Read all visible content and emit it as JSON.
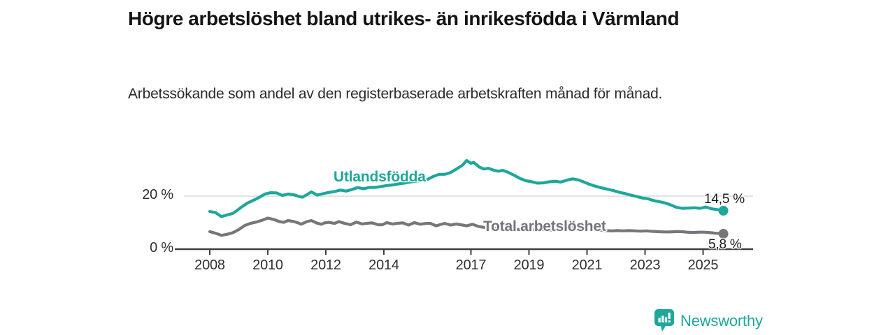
{
  "header": {
    "title": "Högre arbetslöshet bland utrikes- än inrikesfödda i Värmland",
    "subtitle": "Arbetssökande som andel av den registerbaserade arbetskraften månad för månad."
  },
  "chart_data": {
    "type": "line",
    "title": "Högre arbetslöshet bland utrikes- än inrikesfödda i Värmland",
    "subtitle": "Arbetssökande som andel av den registerbaserade arbetskraften månad för månad.",
    "unit": "%",
    "xlabel": "",
    "ylabel": "",
    "ylim": [
      0,
      36
    ],
    "x_range_years": [
      2008.0,
      2025.7
    ],
    "grid": "single horizontal gridline at 20 %",
    "legend_position": "inline labels on lines",
    "y_ticks": [
      {
        "value": 0,
        "label": "0 %"
      },
      {
        "value": 20,
        "label": "20 %"
      }
    ],
    "x_ticks": [
      {
        "value": 2008,
        "label": "2008"
      },
      {
        "value": 2010,
        "label": "2010"
      },
      {
        "value": 2012,
        "label": "2012"
      },
      {
        "value": 2014,
        "label": "2014"
      },
      {
        "value": 2017,
        "label": "2017"
      },
      {
        "value": 2019,
        "label": "2019"
      },
      {
        "value": 2021,
        "label": "2021"
      },
      {
        "value": 2023,
        "label": "2023"
      },
      {
        "value": 2025,
        "label": "2025"
      }
    ],
    "colors": {
      "utlandsfodda": "#1ea79a",
      "total": "#76767b",
      "axis": "#3f3f3f",
      "gridline": "#d8d8d8"
    },
    "series": [
      {
        "name": "Utlandsfödda",
        "color": "#1ea79a",
        "end_label": "14,5 %",
        "end_value": 14.5,
        "points": [
          [
            2008.0,
            14.2
          ],
          [
            2008.2,
            13.8
          ],
          [
            2008.4,
            12.3
          ],
          [
            2008.6,
            12.9
          ],
          [
            2008.8,
            13.5
          ],
          [
            2008.9,
            14.3
          ],
          [
            2009.1,
            15.9
          ],
          [
            2009.3,
            17.4
          ],
          [
            2009.5,
            18.4
          ],
          [
            2009.7,
            19.5
          ],
          [
            2009.9,
            20.8
          ],
          [
            2010.1,
            21.3
          ],
          [
            2010.3,
            21.2
          ],
          [
            2010.5,
            20.3
          ],
          [
            2010.7,
            20.8
          ],
          [
            2010.9,
            20.5
          ],
          [
            2011.1,
            19.8
          ],
          [
            2011.2,
            19.6
          ],
          [
            2011.4,
            20.9
          ],
          [
            2011.5,
            21.6
          ],
          [
            2011.7,
            20.4
          ],
          [
            2011.9,
            20.9
          ],
          [
            2012.1,
            21.4
          ],
          [
            2012.3,
            21.7
          ],
          [
            2012.5,
            22.3
          ],
          [
            2012.7,
            21.9
          ],
          [
            2012.9,
            22.5
          ],
          [
            2013.1,
            23.2
          ],
          [
            2013.3,
            22.8
          ],
          [
            2013.5,
            23.3
          ],
          [
            2013.7,
            23.3
          ],
          [
            2013.9,
            23.6
          ],
          [
            2014.1,
            24.0
          ],
          [
            2014.3,
            24.2
          ],
          [
            2014.5,
            24.6
          ],
          [
            2014.7,
            24.9
          ],
          [
            2014.9,
            25.3
          ],
          [
            2015.1,
            25.6
          ],
          [
            2015.3,
            25.9
          ],
          [
            2015.5,
            26.3
          ],
          [
            2015.7,
            27.4
          ],
          [
            2015.9,
            28.2
          ],
          [
            2016.1,
            28.2
          ],
          [
            2016.3,
            28.9
          ],
          [
            2016.5,
            30.2
          ],
          [
            2016.7,
            31.6
          ],
          [
            2016.85,
            33.4
          ],
          [
            2017.0,
            32.4
          ],
          [
            2017.1,
            32.7
          ],
          [
            2017.3,
            30.9
          ],
          [
            2017.45,
            30.2
          ],
          [
            2017.6,
            30.5
          ],
          [
            2017.8,
            29.7
          ],
          [
            2017.95,
            29.4
          ],
          [
            2018.1,
            29.7
          ],
          [
            2018.3,
            28.9
          ],
          [
            2018.5,
            27.8
          ],
          [
            2018.7,
            26.6
          ],
          [
            2018.9,
            25.8
          ],
          [
            2019.1,
            25.4
          ],
          [
            2019.3,
            24.9
          ],
          [
            2019.5,
            25.0
          ],
          [
            2019.7,
            25.4
          ],
          [
            2019.9,
            25.6
          ],
          [
            2020.1,
            25.3
          ],
          [
            2020.3,
            26.0
          ],
          [
            2020.5,
            26.5
          ],
          [
            2020.7,
            26.1
          ],
          [
            2020.9,
            25.3
          ],
          [
            2021.1,
            24.4
          ],
          [
            2021.3,
            23.7
          ],
          [
            2021.5,
            23.1
          ],
          [
            2021.7,
            22.6
          ],
          [
            2021.9,
            22.1
          ],
          [
            2022.1,
            21.5
          ],
          [
            2022.3,
            21.0
          ],
          [
            2022.5,
            20.4
          ],
          [
            2022.7,
            19.9
          ],
          [
            2022.9,
            19.3
          ],
          [
            2023.1,
            19.0
          ],
          [
            2023.3,
            18.3
          ],
          [
            2023.5,
            17.9
          ],
          [
            2023.7,
            17.4
          ],
          [
            2023.9,
            16.6
          ],
          [
            2024.1,
            15.7
          ],
          [
            2024.3,
            15.4
          ],
          [
            2024.5,
            15.5
          ],
          [
            2024.7,
            15.6
          ],
          [
            2024.9,
            15.4
          ],
          [
            2025.1,
            15.9
          ],
          [
            2025.3,
            15.2
          ],
          [
            2025.5,
            14.9
          ],
          [
            2025.7,
            14.5
          ]
        ]
      },
      {
        "name": "Total arbetslöshet",
        "color": "#76767b",
        "end_label": "5,8 %",
        "end_value": 5.8,
        "points": [
          [
            2008.0,
            6.6
          ],
          [
            2008.2,
            6.0
          ],
          [
            2008.4,
            5.2
          ],
          [
            2008.6,
            5.6
          ],
          [
            2008.8,
            6.2
          ],
          [
            2009.0,
            7.4
          ],
          [
            2009.2,
            8.9
          ],
          [
            2009.4,
            9.7
          ],
          [
            2009.6,
            10.2
          ],
          [
            2009.8,
            10.9
          ],
          [
            2010.0,
            11.7
          ],
          [
            2010.2,
            11.2
          ],
          [
            2010.4,
            10.4
          ],
          [
            2010.55,
            10.1
          ],
          [
            2010.7,
            10.8
          ],
          [
            2010.9,
            10.4
          ],
          [
            2011.05,
            9.9
          ],
          [
            2011.15,
            9.4
          ],
          [
            2011.35,
            10.4
          ],
          [
            2011.5,
            10.8
          ],
          [
            2011.7,
            9.8
          ],
          [
            2011.85,
            9.4
          ],
          [
            2011.95,
            9.9
          ],
          [
            2012.1,
            10.1
          ],
          [
            2012.3,
            9.7
          ],
          [
            2012.45,
            10.4
          ],
          [
            2012.65,
            9.7
          ],
          [
            2012.85,
            9.2
          ],
          [
            2013.05,
            10.2
          ],
          [
            2013.25,
            9.5
          ],
          [
            2013.45,
            9.8
          ],
          [
            2013.6,
            9.9
          ],
          [
            2013.8,
            9.2
          ],
          [
            2013.95,
            9.2
          ],
          [
            2014.1,
            10.0
          ],
          [
            2014.3,
            9.5
          ],
          [
            2014.5,
            9.8
          ],
          [
            2014.65,
            9.9
          ],
          [
            2014.85,
            9.1
          ],
          [
            2015.05,
            10.0
          ],
          [
            2015.25,
            9.4
          ],
          [
            2015.45,
            9.7
          ],
          [
            2015.6,
            9.7
          ],
          [
            2015.8,
            8.8
          ],
          [
            2015.95,
            9.3
          ],
          [
            2016.1,
            9.7
          ],
          [
            2016.3,
            9.1
          ],
          [
            2016.5,
            9.5
          ],
          [
            2016.65,
            9.2
          ],
          [
            2016.85,
            8.8
          ],
          [
            2017.05,
            9.4
          ],
          [
            2017.25,
            8.6
          ],
          [
            2017.45,
            8.2
          ],
          [
            2017.65,
            8.1
          ],
          [
            2017.85,
            7.9
          ],
          [
            2018.05,
            8.2
          ],
          [
            2018.25,
            7.7
          ],
          [
            2018.45,
            7.6
          ],
          [
            2018.65,
            7.4
          ],
          [
            2018.85,
            7.3
          ],
          [
            2019.05,
            7.6
          ],
          [
            2019.25,
            7.2
          ],
          [
            2019.45,
            7.4
          ],
          [
            2019.65,
            7.3
          ],
          [
            2019.85,
            7.2
          ],
          [
            2020.05,
            7.5
          ],
          [
            2020.25,
            8.1
          ],
          [
            2020.45,
            8.4
          ],
          [
            2020.65,
            8.2
          ],
          [
            2020.85,
            7.9
          ],
          [
            2021.05,
            7.7
          ],
          [
            2021.25,
            7.4
          ],
          [
            2021.45,
            7.2
          ],
          [
            2021.65,
            7.0
          ],
          [
            2021.85,
            6.9
          ],
          [
            2022.05,
            7.0
          ],
          [
            2022.25,
            6.9
          ],
          [
            2022.45,
            7.0
          ],
          [
            2022.65,
            6.9
          ],
          [
            2022.85,
            6.8
          ],
          [
            2023.05,
            6.9
          ],
          [
            2023.25,
            6.7
          ],
          [
            2023.45,
            6.6
          ],
          [
            2023.65,
            6.5
          ],
          [
            2023.85,
            6.5
          ],
          [
            2024.05,
            6.6
          ],
          [
            2024.25,
            6.6
          ],
          [
            2024.45,
            6.4
          ],
          [
            2024.65,
            6.3
          ],
          [
            2024.85,
            6.4
          ],
          [
            2025.05,
            6.4
          ],
          [
            2025.25,
            6.2
          ],
          [
            2025.45,
            6.0
          ],
          [
            2025.6,
            5.9
          ],
          [
            2025.7,
            5.8
          ]
        ]
      }
    ]
  },
  "footer": {
    "brand": "Newsworthy"
  }
}
